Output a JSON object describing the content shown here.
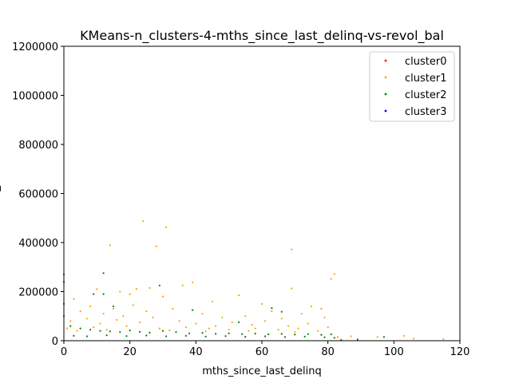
{
  "chart_data": {
    "type": "scatter",
    "title": "KMeans-n_clusters-4-mths_since_last_delinq-vs-revol_bal",
    "xlabel": "mths_since_last_delinq",
    "ylabel": "revol_bal",
    "xlim": [
      0,
      120
    ],
    "ylim": [
      0,
      1200000
    ],
    "x_ticks": [
      0,
      20,
      40,
      60,
      80,
      100,
      120
    ],
    "y_ticks": [
      0,
      200000,
      400000,
      600000,
      800000,
      1000000,
      1200000
    ],
    "grid": false,
    "legend_position": "top-right",
    "series": [
      {
        "name": "cluster0",
        "color": "#ff0000",
        "points": []
      },
      {
        "name": "cluster1",
        "color": "#ffa500",
        "points": [
          [
            24,
            487000
          ],
          [
            31,
            462000
          ],
          [
            14,
            389000
          ],
          [
            28,
            385000
          ],
          [
            69,
            372000
          ],
          [
            36,
            225000
          ],
          [
            39,
            238000
          ],
          [
            22,
            211000
          ],
          [
            26,
            215000
          ],
          [
            69,
            213000
          ],
          [
            82,
            272000
          ],
          [
            81,
            252000
          ],
          [
            3,
            170000
          ],
          [
            10,
            210000
          ],
          [
            17,
            200000
          ],
          [
            20,
            190000
          ],
          [
            30,
            180000
          ],
          [
            45,
            160000
          ],
          [
            53,
            185000
          ],
          [
            60,
            150000
          ],
          [
            75,
            140000
          ],
          [
            78,
            130000
          ],
          [
            103,
            20000
          ],
          [
            106,
            8000
          ],
          [
            115,
            6000
          ],
          [
            87,
            18000
          ],
          [
            95,
            15000
          ],
          [
            5,
            120000
          ],
          [
            8,
            140000
          ],
          [
            12,
            110000
          ],
          [
            15,
            130000
          ],
          [
            18,
            100000
          ],
          [
            21,
            145000
          ],
          [
            25,
            120000
          ],
          [
            33,
            130000
          ],
          [
            42,
            110000
          ],
          [
            48,
            95000
          ],
          [
            55,
            100000
          ],
          [
            63,
            120000
          ],
          [
            66,
            90000
          ],
          [
            72,
            110000
          ],
          [
            79,
            95000
          ],
          [
            2,
            80000
          ],
          [
            7,
            90000
          ],
          [
            11,
            70000
          ],
          [
            16,
            85000
          ],
          [
            23,
            75000
          ],
          [
            27,
            95000
          ],
          [
            35,
            80000
          ],
          [
            40,
            70000
          ],
          [
            46,
            60000
          ],
          [
            51,
            75000
          ],
          [
            57,
            65000
          ],
          [
            61,
            80000
          ],
          [
            68,
            60000
          ],
          [
            74,
            70000
          ],
          [
            80,
            55000
          ],
          [
            1,
            50000
          ],
          [
            9,
            55000
          ],
          [
            19,
            60000
          ],
          [
            29,
            50000
          ],
          [
            37,
            55000
          ],
          [
            44,
            50000
          ],
          [
            50,
            45000
          ],
          [
            58,
            50000
          ],
          [
            65,
            45000
          ],
          [
            71,
            50000
          ],
          [
            77,
            40000
          ],
          [
            83,
            15000
          ],
          [
            4,
            40000
          ],
          [
            13,
            45000
          ],
          [
            32,
            42000
          ],
          [
            43,
            38000
          ],
          [
            56,
            40000
          ],
          [
            70,
            35000
          ]
        ]
      },
      {
        "name": "cluster2",
        "color": "#008000",
        "points": [
          [
            0,
            270000
          ],
          [
            0,
            240000
          ],
          [
            12,
            275000
          ],
          [
            29,
            225000
          ],
          [
            9,
            190000
          ],
          [
            12,
            190000
          ],
          [
            15,
            140000
          ],
          [
            39,
            125000
          ],
          [
            63,
            133000
          ],
          [
            66,
            118000
          ],
          [
            53,
            75000
          ],
          [
            97,
            15000
          ],
          [
            89,
            5000
          ],
          [
            84,
            3000
          ],
          [
            0,
            150000
          ],
          [
            0,
            100000
          ],
          [
            2,
            60000
          ],
          [
            5,
            50000
          ],
          [
            8,
            45000
          ],
          [
            11,
            40000
          ],
          [
            14,
            38000
          ],
          [
            17,
            35000
          ],
          [
            20,
            42000
          ],
          [
            23,
            36000
          ],
          [
            26,
            33000
          ],
          [
            30,
            40000
          ],
          [
            34,
            35000
          ],
          [
            38,
            30000
          ],
          [
            42,
            32000
          ],
          [
            46,
            28000
          ],
          [
            50,
            30000
          ],
          [
            54,
            27000
          ],
          [
            58,
            29000
          ],
          [
            62,
            26000
          ],
          [
            66,
            28000
          ],
          [
            70,
            25000
          ],
          [
            74,
            27000
          ],
          [
            78,
            24000
          ],
          [
            81,
            26000
          ],
          [
            3,
            20000
          ],
          [
            7,
            18000
          ],
          [
            13,
            22000
          ],
          [
            19,
            19000
          ],
          [
            25,
            21000
          ],
          [
            31,
            18000
          ],
          [
            37,
            20000
          ],
          [
            43,
            17000
          ],
          [
            49,
            19000
          ],
          [
            55,
            16000
          ],
          [
            61,
            18000
          ],
          [
            67,
            15000
          ],
          [
            73,
            17000
          ],
          [
            79,
            14000
          ],
          [
            82,
            12000
          ]
        ]
      },
      {
        "name": "cluster3",
        "color": "#0000ff",
        "points": []
      }
    ]
  }
}
